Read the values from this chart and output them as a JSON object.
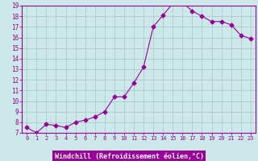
{
  "x": [
    0,
    1,
    2,
    3,
    4,
    5,
    6,
    7,
    8,
    9,
    10,
    11,
    12,
    13,
    14,
    15,
    16,
    17,
    18,
    19,
    20,
    21,
    22,
    23
  ],
  "y": [
    7.5,
    7.0,
    7.8,
    7.7,
    7.5,
    8.0,
    8.2,
    8.5,
    9.0,
    10.4,
    10.4,
    11.7,
    13.2,
    17.0,
    18.1,
    19.2,
    19.3,
    18.5,
    18.0,
    17.5,
    17.5,
    17.2,
    16.2,
    15.9
  ],
  "line_color": "#990099",
  "marker": "D",
  "marker_size": 2.5,
  "bg_color": "#cce8e8",
  "grid_color": "#aacccc",
  "xlabel": "Windchill (Refroidissement éolien,°C)",
  "xlabel_color": "#ffffff",
  "xlabel_bg": "#990099",
  "ylim": [
    7,
    19
  ],
  "xlim": [
    -0.5,
    23.5
  ],
  "yticks": [
    7,
    8,
    9,
    10,
    11,
    12,
    13,
    14,
    15,
    16,
    17,
    18,
    19
  ],
  "xticks": [
    0,
    1,
    2,
    3,
    4,
    5,
    6,
    7,
    8,
    9,
    10,
    11,
    12,
    13,
    14,
    15,
    16,
    17,
    18,
    19,
    20,
    21,
    22,
    23
  ],
  "tick_color": "#990099",
  "border_color": "#990099",
  "title_color": "#990099"
}
